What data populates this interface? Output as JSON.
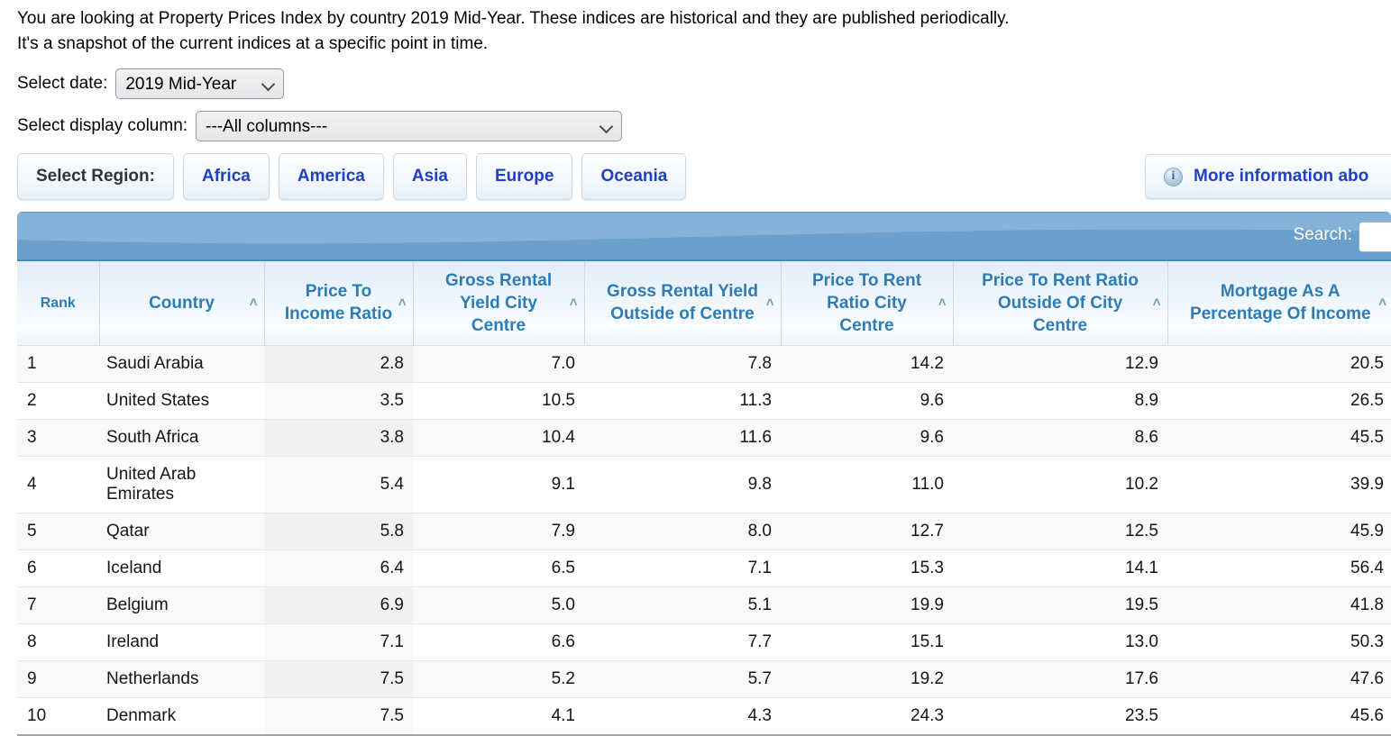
{
  "page": {
    "description_line1": "You are looking at Property Prices Index by country 2019 Mid-Year. These indices are historical and they are published periodically.",
    "description_line2": "It's a snapshot of the current indices at a specific point in time."
  },
  "controls": {
    "date_label": "Select date:",
    "date_value": "2019 Mid-Year",
    "column_label": "Select display column:",
    "column_value": "---All columns---",
    "region_label": "Select Region:",
    "regions": [
      "Africa",
      "America",
      "Asia",
      "Europe",
      "Oceania"
    ],
    "more_info_label": "More information abo"
  },
  "icons": {
    "info": "i",
    "sort_asc": "˄"
  },
  "table": {
    "search_label": "Search:",
    "search_value": "",
    "columns": [
      {
        "label": "Rank",
        "sortable": false
      },
      {
        "label": "Country",
        "sortable": true
      },
      {
        "label": "Price To Income Ratio",
        "sortable": true,
        "sorted": "asc"
      },
      {
        "label": "Gross Rental Yield City Centre",
        "sortable": true
      },
      {
        "label": "Gross Rental Yield Outside of Centre",
        "sortable": true
      },
      {
        "label": "Price To Rent Ratio City Centre",
        "sortable": true
      },
      {
        "label": "Price To Rent Ratio Outside Of City Centre",
        "sortable": true
      },
      {
        "label": "Mortgage As A Percentage Of Income",
        "sortable": true
      }
    ],
    "rows": [
      [
        "1",
        "Saudi Arabia",
        "2.8",
        "7.0",
        "7.8",
        "14.2",
        "12.9",
        "20.5"
      ],
      [
        "2",
        "United States",
        "3.5",
        "10.5",
        "11.3",
        "9.6",
        "8.9",
        "26.5"
      ],
      [
        "3",
        "South Africa",
        "3.8",
        "10.4",
        "11.6",
        "9.6",
        "8.6",
        "45.5"
      ],
      [
        "4",
        "United Arab Emirates",
        "5.4",
        "9.1",
        "9.8",
        "11.0",
        "10.2",
        "39.9"
      ],
      [
        "5",
        "Qatar",
        "5.8",
        "7.9",
        "8.0",
        "12.7",
        "12.5",
        "45.9"
      ],
      [
        "6",
        "Iceland",
        "6.4",
        "6.5",
        "7.1",
        "15.3",
        "14.1",
        "56.4"
      ],
      [
        "7",
        "Belgium",
        "6.9",
        "5.0",
        "5.1",
        "19.9",
        "19.5",
        "41.8"
      ],
      [
        "8",
        "Ireland",
        "7.1",
        "6.6",
        "7.7",
        "15.1",
        "13.0",
        "50.3"
      ],
      [
        "9",
        "Netherlands",
        "7.5",
        "5.2",
        "5.7",
        "19.2",
        "17.6",
        "47.6"
      ],
      [
        "10",
        "Denmark",
        "7.5",
        "4.1",
        "4.3",
        "24.3",
        "23.5",
        "45.6"
      ]
    ]
  },
  "colors": {
    "band_blue_top": "#86b2d9",
    "band_blue_bottom": "#6ba0cd",
    "band_border": "#4b8cc0",
    "header_text_blue": "#2e7cb5",
    "header_bg_top": "#e1edf9",
    "link_blue": "#1f3fc4",
    "stripe_gray": "#f9f9f9",
    "sorted_stripe_gray": "#f1f1f1"
  }
}
